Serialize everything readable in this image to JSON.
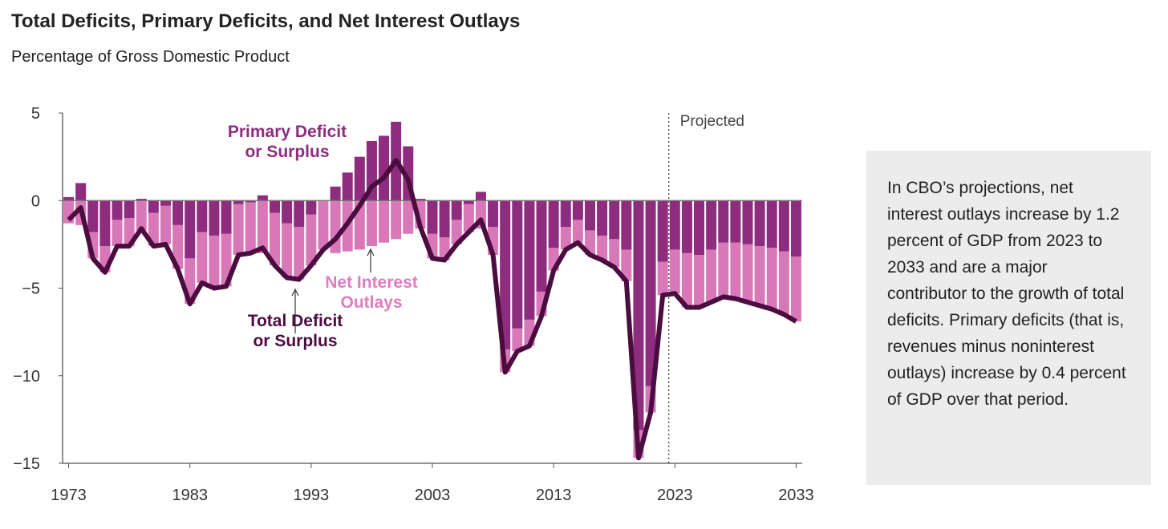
{
  "chart_data": {
    "type": "stacked-bar-line",
    "title": "Total Deficits, Primary Deficits, and Net Interest Outlays",
    "subtitle": "Percentage of Gross Domestic Product",
    "note": "In CBO’s projections, net interest outlays increase by 1.2 percent of GDP from 2023 to 2033 and are a major contributor to the growth of total deficits. Primary deficits (that is, revenues minus noninterest outlays) increase by 0.4 percent of GDP over that period.",
    "projection_label": "Projected",
    "projection_line": 2022.5,
    "x": [
      1973,
      1974,
      1975,
      1976,
      1977,
      1978,
      1979,
      1980,
      1981,
      1982,
      1983,
      1984,
      1985,
      1986,
      1987,
      1988,
      1989,
      1990,
      1991,
      1992,
      1993,
      1994,
      1995,
      1996,
      1997,
      1998,
      1999,
      2000,
      2001,
      2002,
      2003,
      2004,
      2005,
      2006,
      2007,
      2008,
      2009,
      2010,
      2011,
      2012,
      2013,
      2014,
      2015,
      2016,
      2017,
      2018,
      2019,
      2020,
      2021,
      2022,
      2023,
      2024,
      2025,
      2026,
      2027,
      2028,
      2029,
      2030,
      2031,
      2032,
      2033
    ],
    "xlim": [
      1972.5,
      2033.5
    ],
    "xticks": [
      1973,
      1983,
      1993,
      2003,
      2013,
      2023,
      2033
    ],
    "ylim": [
      -15,
      5
    ],
    "yticks": [
      {
        "value": -15,
        "label": "−15"
      },
      {
        "value": -10,
        "label": "−10"
      },
      {
        "value": -5,
        "label": "−5"
      },
      0,
      5
    ],
    "series": [
      {
        "name": [
          "Primary Deficit",
          "or Surplus"
        ],
        "kind": "bar",
        "color": "#8e2c7e",
        "values": [
          0.2,
          1.0,
          -1.8,
          -2.6,
          -1.1,
          -1.0,
          0.1,
          -0.7,
          -0.3,
          -1.4,
          -3.3,
          -1.8,
          -2.0,
          -1.9,
          -0.2,
          -0.1,
          0.3,
          -0.7,
          -1.3,
          -1.5,
          -0.8,
          0.0,
          0.8,
          1.6,
          2.5,
          3.4,
          3.7,
          4.5,
          3.1,
          0.1,
          -1.9,
          -2.1,
          -1.1,
          -0.2,
          0.5,
          -1.5,
          -8.5,
          -7.3,
          -6.8,
          -5.2,
          -2.7,
          -1.5,
          -1.1,
          -1.7,
          -2.0,
          -2.2,
          -2.8,
          -13.1,
          -10.6,
          -3.5,
          -2.8,
          -3.0,
          -3.1,
          -2.8,
          -2.4,
          -2.4,
          -2.5,
          -2.6,
          -2.7,
          -2.9,
          -3.2
        ]
      },
      {
        "name": [
          "Net Interest",
          "Outlays"
        ],
        "kind": "bar",
        "color": "#d978b9",
        "values": [
          -1.3,
          -1.4,
          -1.5,
          -1.5,
          -1.5,
          -1.6,
          -1.7,
          -1.9,
          -2.2,
          -2.5,
          -2.6,
          -2.9,
          -3.0,
          -3.0,
          -2.9,
          -2.9,
          -3.0,
          -3.0,
          -3.1,
          -3.0,
          -2.9,
          -2.8,
          -3.0,
          -2.9,
          -2.8,
          -2.6,
          -2.4,
          -2.2,
          -1.9,
          -1.6,
          -1.4,
          -1.3,
          -1.4,
          -1.6,
          -1.6,
          -1.6,
          -1.3,
          -1.3,
          -1.5,
          -1.4,
          -1.3,
          -1.3,
          -1.3,
          -1.4,
          -1.4,
          -1.6,
          -1.8,
          -1.6,
          -1.5,
          -1.9,
          -2.5,
          -3.1,
          -3.0,
          -3.0,
          -3.1,
          -3.2,
          -3.3,
          -3.4,
          -3.5,
          -3.6,
          -3.7
        ]
      },
      {
        "name": [
          "Total Deficit",
          "or Surplus"
        ],
        "kind": "line",
        "color": "#4b0c3f",
        "values": [
          -1.1,
          -0.4,
          -3.3,
          -4.1,
          -2.6,
          -2.6,
          -1.6,
          -2.6,
          -2.5,
          -3.9,
          -5.9,
          -4.7,
          -5.0,
          -4.9,
          -3.1,
          -3.0,
          -2.7,
          -3.7,
          -4.4,
          -4.5,
          -3.7,
          -2.8,
          -2.2,
          -1.3,
          -0.3,
          0.8,
          1.3,
          2.3,
          1.2,
          -1.5,
          -3.3,
          -3.4,
          -2.5,
          -1.8,
          -1.1,
          -3.1,
          -9.8,
          -8.6,
          -8.3,
          -6.6,
          -4.0,
          -2.8,
          -2.4,
          -3.1,
          -3.4,
          -3.8,
          -4.6,
          -14.7,
          -12.1,
          -5.4,
          -5.3,
          -6.1,
          -6.1,
          -5.8,
          -5.5,
          -5.6,
          -5.8,
          -6.0,
          -6.2,
          -6.5,
          -6.9
        ]
      }
    ]
  }
}
